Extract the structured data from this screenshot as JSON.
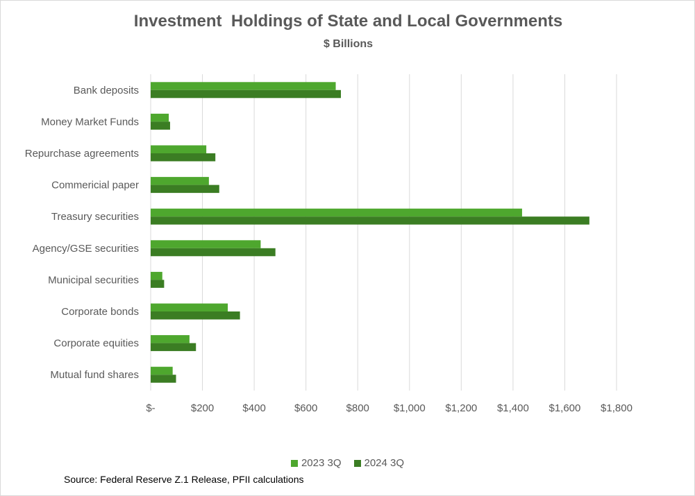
{
  "chart_data": {
    "type": "bar",
    "orientation": "horizontal",
    "title": "Investment  Holdings of State and Local Governments",
    "subtitle": "$ Billions",
    "categories": [
      "Bank deposits",
      "Money Market Funds",
      "Repurchase agreements",
      "Commericial paper",
      "Treasury securities",
      "Agency/GSE securities",
      "Municipal securities",
      "Corporate bonds",
      "Corporate equities",
      "Mutual fund shares"
    ],
    "series": [
      {
        "name": "2023 3Q",
        "color": "#4ea72e",
        "values": [
          715,
          70,
          215,
          225,
          1435,
          425,
          45,
          298,
          150,
          85
        ]
      },
      {
        "name": "2024 3Q",
        "color": "#3b7d23",
        "values": [
          735,
          75,
          250,
          265,
          1695,
          482,
          52,
          345,
          175,
          98
        ]
      }
    ],
    "xlim": [
      0,
      1800
    ],
    "xticks": [
      0,
      200,
      400,
      600,
      800,
      1000,
      1200,
      1400,
      1600,
      1800
    ],
    "xtick_labels": [
      "$-",
      "$200",
      "$400",
      "$600",
      "$800",
      "$1,000",
      "$1,200",
      "$1,400",
      "$1,600",
      "$1,800"
    ],
    "grid": "vertical",
    "legend_position": "bottom",
    "source": "Source:  Federal Reserve Z.1 Release, PFII calculations"
  }
}
